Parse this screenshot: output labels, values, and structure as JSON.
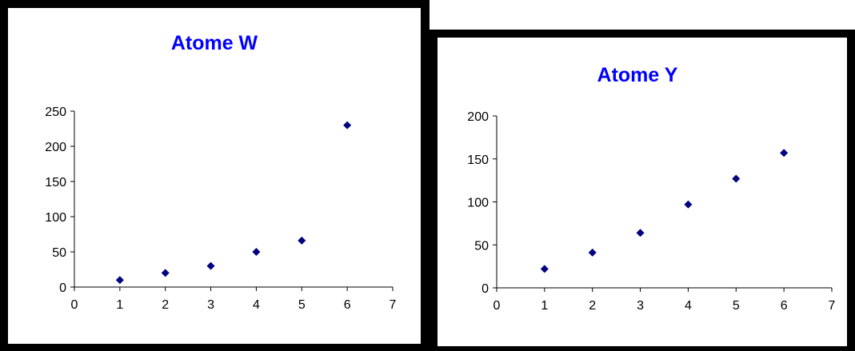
{
  "chart_data": [
    {
      "type": "scatter",
      "title": "Atome W",
      "xlabel": "",
      "ylabel": "",
      "xlim": [
        0,
        7
      ],
      "ylim": [
        0,
        250
      ],
      "xticks": [
        "0",
        "1",
        "2",
        "3",
        "4",
        "5",
        "6",
        "7"
      ],
      "yticks": [
        "0",
        "50",
        "100",
        "150",
        "200",
        "250"
      ],
      "grid": false,
      "legend": "none",
      "series": [
        {
          "marker": "diamond",
          "color": "#000080",
          "points": [
            {
              "x": 1,
              "y": 10
            },
            {
              "x": 2,
              "y": 20
            },
            {
              "x": 3,
              "y": 30
            },
            {
              "x": 4,
              "y": 50
            },
            {
              "x": 5,
              "y": 66
            },
            {
              "x": 6,
              "y": 230
            }
          ]
        }
      ]
    },
    {
      "type": "scatter",
      "title": "Atome Y",
      "xlabel": "",
      "ylabel": "",
      "xlim": [
        0,
        7
      ],
      "ylim": [
        0,
        200
      ],
      "xticks": [
        "0",
        "1",
        "2",
        "3",
        "4",
        "5",
        "6",
        "7"
      ],
      "yticks": [
        "0",
        "50",
        "100",
        "150",
        "200"
      ],
      "grid": false,
      "legend": "none",
      "series": [
        {
          "marker": "diamond",
          "color": "#000080",
          "points": [
            {
              "x": 1,
              "y": 22
            },
            {
              "x": 2,
              "y": 41
            },
            {
              "x": 3,
              "y": 64
            },
            {
              "x": 4,
              "y": 97
            },
            {
              "x": 5,
              "y": 127
            },
            {
              "x": 6,
              "y": 157
            }
          ]
        }
      ]
    }
  ],
  "colors": {
    "title": "#0000ff",
    "marker": "#000080",
    "frame": "#000000",
    "background": "#ffffff"
  }
}
